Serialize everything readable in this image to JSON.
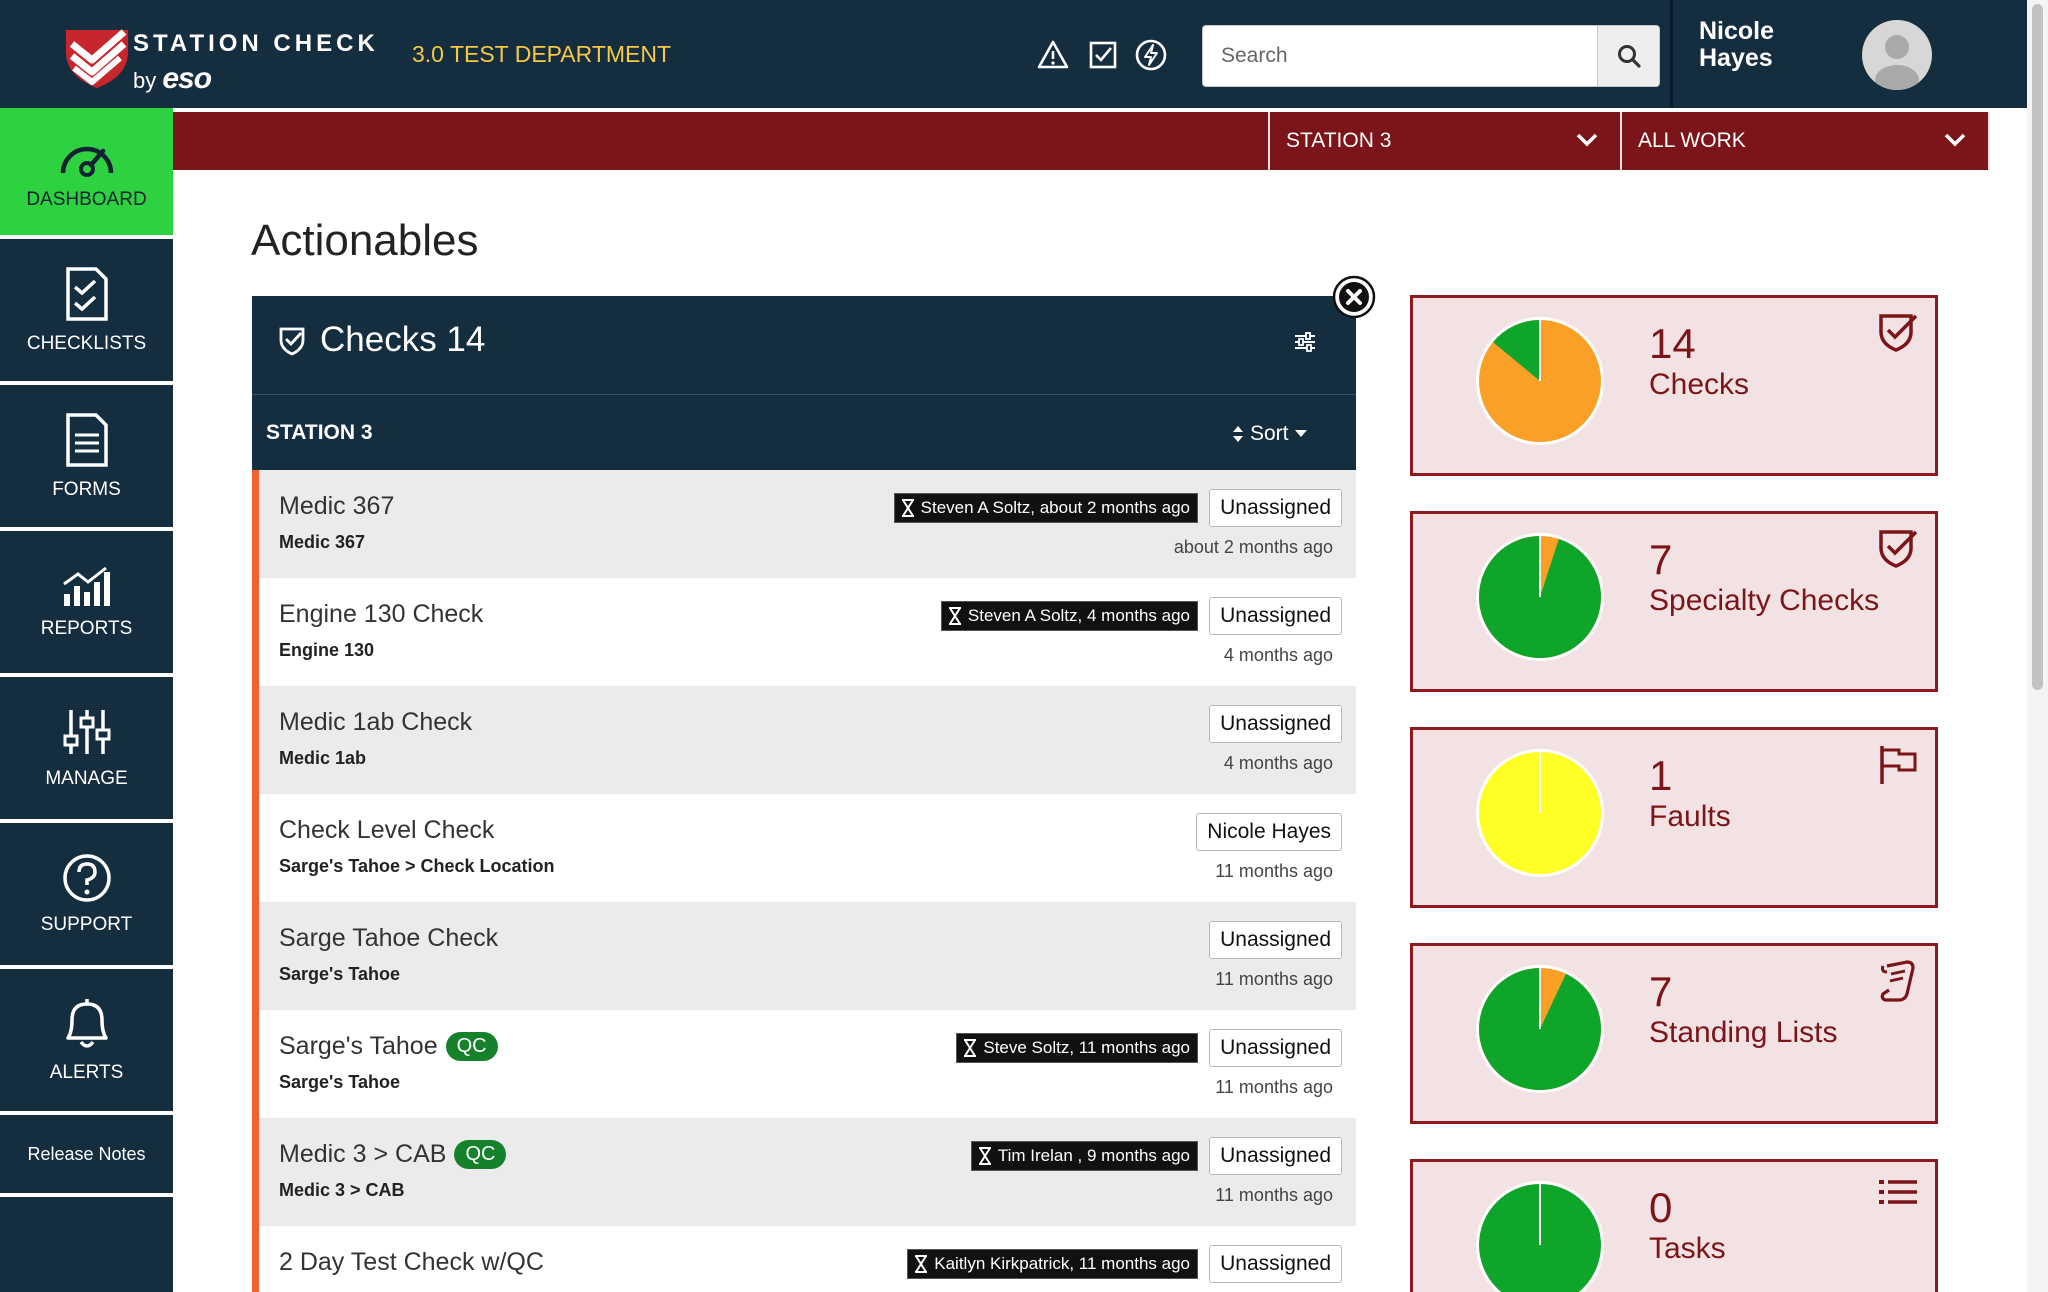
{
  "header": {
    "brand_line1": "STATION CHECK",
    "brand_by": "by",
    "brand_eso": "eso",
    "department": "3.0 TEST DEPARTMENT",
    "search_placeholder": "Search",
    "user_name": "Nicole Hayes",
    "icons": [
      "warning-icon",
      "checkbox-icon",
      "lightning-icon",
      "search-icon",
      "avatar-icon"
    ]
  },
  "filters": {
    "station": "STATION 3",
    "work": "ALL WORK"
  },
  "sidebar": {
    "items": [
      {
        "label": "DASHBOARD",
        "icon": "gauge-icon"
      },
      {
        "label": "CHECKLISTS",
        "icon": "checklist-icon"
      },
      {
        "label": "FORMS",
        "icon": "form-icon"
      },
      {
        "label": "REPORTS",
        "icon": "chart-icon"
      },
      {
        "label": "MANAGE",
        "icon": "sliders-icon"
      },
      {
        "label": "SUPPORT",
        "icon": "help-icon"
      },
      {
        "label": "ALERTS",
        "icon": "bell-icon"
      },
      {
        "label": "Release Notes"
      }
    ]
  },
  "main": {
    "title": "Actionables",
    "panel": {
      "title": "Checks 14",
      "station": "STATION 3",
      "sort_label": "Sort"
    },
    "rows": [
      {
        "title": "Medic 367",
        "qc": "",
        "sub": "Medic 367",
        "tag": "Steven A Soltz, about 2 months ago",
        "assignee": "Unassigned",
        "time": "about 2 months ago"
      },
      {
        "title": "Engine 130 Check",
        "qc": "",
        "sub": "Engine 130",
        "tag": "Steven A Soltz, 4 months ago",
        "assignee": "Unassigned",
        "time": "4 months ago"
      },
      {
        "title": "Medic 1ab Check",
        "qc": "",
        "sub": "Medic 1ab",
        "tag": "",
        "assignee": "Unassigned",
        "time": "4 months ago"
      },
      {
        "title": "Check Level Check",
        "qc": "",
        "sub": "Sarge's Tahoe > Check Location",
        "tag": "",
        "assignee": "Nicole Hayes",
        "time": "11 months ago"
      },
      {
        "title": "Sarge Tahoe Check",
        "qc": "",
        "sub": "Sarge's Tahoe",
        "tag": "",
        "assignee": "Unassigned",
        "time": "11 months ago"
      },
      {
        "title": "Sarge's Tahoe",
        "qc": "QC",
        "sub": "Sarge's Tahoe",
        "tag": "Steve Soltz, 11 months ago",
        "assignee": "Unassigned",
        "time": "11 months ago"
      },
      {
        "title": "Medic 3 > CAB",
        "qc": "QC",
        "sub": "Medic 3 > CAB",
        "tag": "Tim Irelan , 9 months ago",
        "assignee": "Unassigned",
        "time": "11 months ago"
      },
      {
        "title": "2 Day Test Check w/QC",
        "qc": "",
        "sub": "",
        "tag": "Kaitlyn Kirkpatrick, 11 months ago",
        "assignee": "Unassigned",
        "time": ""
      }
    ]
  },
  "stats": [
    {
      "count": "14",
      "label": "Checks",
      "icon": "shield-check-icon",
      "green_fraction": 0.14,
      "accent": "#fba026"
    },
    {
      "count": "7",
      "label": "Specialty Checks",
      "icon": "shield-check-icon",
      "green_fraction": 0.95,
      "accent": "#fba026"
    },
    {
      "count": "1",
      "label": "Faults",
      "icon": "flag-icon",
      "green_fraction": 0.0,
      "accent": "#ffff26"
    },
    {
      "count": "7",
      "label": "Standing Lists",
      "icon": "scroll-icon",
      "green_fraction": 0.93,
      "accent": "#fba026"
    },
    {
      "count": "0",
      "label": "Tasks",
      "icon": "list-icon",
      "green_fraction": 1.0,
      "accent": "#fba026"
    }
  ],
  "colors": {
    "navy": "#142e40",
    "maroon": "#7b1519",
    "active_green": "#2ed13f",
    "pie_green": "#0fa52a",
    "gold": "#f7c844",
    "row_accent": "#f2622a",
    "qc_green": "#16812b"
  }
}
